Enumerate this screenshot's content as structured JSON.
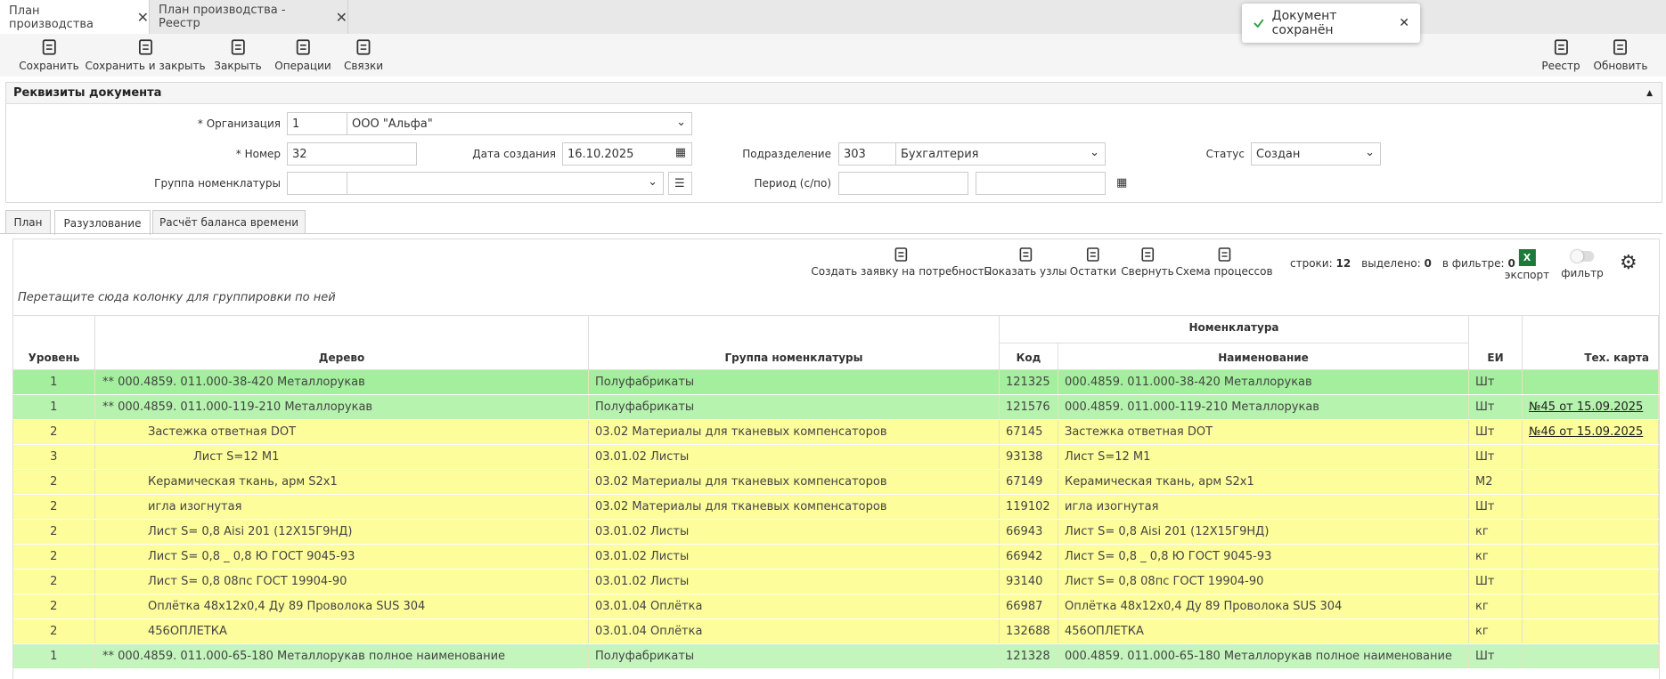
{
  "tabs": [
    "План производства",
    "План производства - Реестр"
  ],
  "toast": "Документ сохранён",
  "toolbar": {
    "left": [
      "Сохранить",
      "Сохранить и закрыть",
      "Закрыть",
      "Операции",
      "Связки"
    ],
    "right": [
      "Реестр",
      "Обновить"
    ]
  },
  "section_title": "Реквизиты документа",
  "form": {
    "organization": {
      "label": "* Организация",
      "code": "1",
      "name": "ООО \"Альфа\""
    },
    "number": {
      "label": "* Номер",
      "value": "32"
    },
    "created": {
      "label": "Дата создания",
      "value": "16.10.2025"
    },
    "department": {
      "label": "Подразделение",
      "code": "303",
      "name": "Бухгалтерия"
    },
    "status": {
      "label": "Статус",
      "value": "Создан"
    },
    "nomenclature_group": {
      "label": "Группа номенклатуры"
    },
    "period": {
      "label": "Период (с/по)"
    }
  },
  "inner_tabs": [
    "План",
    "Разузлование",
    "Расчёт баланса времени"
  ],
  "active_inner_tab": 1,
  "grid_toolbar": [
    "Создать заявку на потребность",
    "Показать узлы",
    "Остатки",
    "Свернуть",
    "Схема процессов"
  ],
  "stats": [
    {
      "label": "строки:",
      "value": 12
    },
    {
      "label": "выделено:",
      "value": 0
    },
    {
      "label": "в фильтре:",
      "value": 0
    }
  ],
  "export": "экспорт",
  "filter": "фильтр",
  "group_hint": "Перетащите сюда колонку для группировки по ней",
  "table": {
    "columns": {
      "level": "Уровень",
      "tree": "Дерево",
      "group": "Группа номенклатуры",
      "nomenclature": "Номенклатура",
      "code": "Код",
      "name": "Наименование",
      "unit": "ЕИ",
      "tech_card": "Тех. карта"
    },
    "rows": [
      {
        "level": 1,
        "tree": "** 000.4859. 011.000-38-420 Металлорукав",
        "group": "Полуфабрикаты",
        "code": "121325",
        "name": "000.4859. 011.000-38-420 Металлорукав",
        "unit": "Шт",
        "color": "#a3ef9d"
      },
      {
        "level": 1,
        "tree": "** 000.4859. 011.000-119-210 Металлорукав",
        "group": "Полуфабрикаты",
        "code": "121576",
        "name": "000.4859. 011.000-119-210 Металлорукав",
        "unit": "Шт",
        "tech_card": "№45 от 15.09.2025",
        "color": "#b6f3ae"
      },
      {
        "level": 2,
        "tree": "Застежка ответная DOT",
        "group": "03.02 Материалы для тканевых компенсаторов",
        "code": "67145",
        "name": "Застежка ответная DOT",
        "unit": "Шт",
        "tech_card": "№46 от 15.09.2025",
        "color": "#fdfd9b"
      },
      {
        "level": 3,
        "tree": "Лист S=12 М1",
        "group": "03.01.02 Листы",
        "code": "93138",
        "name": "Лист S=12 М1",
        "unit": "Шт",
        "color": "#fdfd9b"
      },
      {
        "level": 2,
        "tree": "Керамическая ткань, арм S2х1",
        "group": "03.02 Материалы для тканевых компенсаторов",
        "code": "67149",
        "name": "Керамическая ткань, арм S2х1",
        "unit": "М2",
        "color": "#fdfd9b"
      },
      {
        "level": 2,
        "tree": "игла изогнутая",
        "group": "03.02 Материалы для тканевых компенсаторов",
        "code": "119102",
        "name": "игла изогнутая",
        "unit": "Шт",
        "color": "#fdfd9b"
      },
      {
        "level": 2,
        "tree": "Лист S= 0,8 Aisi 201 (12Х15Г9НД)",
        "group": "03.01.02 Листы",
        "code": "66943",
        "name": "Лист S= 0,8 Aisi 201 (12Х15Г9НД)",
        "unit": "кг",
        "color": "#fdfd9b"
      },
      {
        "level": 2,
        "tree": "Лист S= 0,8 _ 0,8 Ю ГОСТ 9045-93",
        "group": "03.01.02 Листы",
        "code": "66942",
        "name": "Лист S= 0,8 _ 0,8 Ю ГОСТ 9045-93",
        "unit": "кг",
        "color": "#fdfd9b"
      },
      {
        "level": 2,
        "tree": "Лист S= 0,8 08пс ГОСТ 19904-90",
        "group": "03.01.02 Листы",
        "code": "93140",
        "name": "Лист S= 0,8 08пс ГОСТ 19904-90",
        "unit": "Шт",
        "color": "#fdfd9b"
      },
      {
        "level": 2,
        "tree": "Оплётка 48х12х0,4 Ду 89 Проволока SUS 304",
        "group": "03.01.04 Оплётка",
        "code": "66987",
        "name": "Оплётка 48х12х0,4 Ду 89 Проволока SUS 304",
        "unit": "кг",
        "color": "#fdfd9b"
      },
      {
        "level": 2,
        "tree": "456ОПЛЕТКА",
        "group": "03.01.04 Оплётка",
        "code": "132688",
        "name": "456ОПЛЕТКА",
        "unit": "кг",
        "color": "#fdfd9b"
      },
      {
        "level": 1,
        "tree": "** 000.4859. 011.000-65-180 Металлорукав полное наименование",
        "group": "Полуфабрикаты",
        "code": "121328",
        "name": "000.4859. 011.000-65-180 Металлорукав полное наименование",
        "unit": "Шт",
        "color": "#c4f5bd"
      }
    ]
  }
}
